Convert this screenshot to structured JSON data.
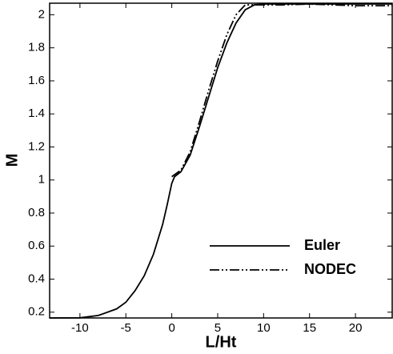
{
  "chart_data": {
    "type": "line",
    "x_label": "L/Ht",
    "y_label": "M",
    "xlim": [
      -13.3,
      24
    ],
    "ylim": [
      0.165,
      2.07
    ],
    "xticks": [
      -10,
      -5,
      0,
      5,
      10,
      15,
      20
    ],
    "yticks": [
      0.2,
      0.4,
      0.6,
      0.8,
      1,
      1.2,
      1.4,
      1.6,
      1.8,
      2
    ],
    "legend": "lower right",
    "series": [
      {
        "name": "Euler",
        "color": "#000000",
        "dash": "solid",
        "x": [
          -13.3,
          -10,
          -8,
          -6,
          -5,
          -4,
          -3,
          -2,
          -1,
          -0.5,
          0,
          0.3,
          1,
          2,
          3,
          4,
          5,
          6,
          7,
          8,
          9,
          10,
          15,
          24
        ],
        "values": [
          0.165,
          0.166,
          0.18,
          0.22,
          0.26,
          0.33,
          0.42,
          0.55,
          0.73,
          0.85,
          0.98,
          1.02,
          1.05,
          1.15,
          1.32,
          1.5,
          1.68,
          1.83,
          1.95,
          2.03,
          2.06,
          2.065,
          2.065,
          2.065
        ]
      },
      {
        "name": "NODEC",
        "color": "#000000",
        "dash": "dash-dot-dot",
        "x": [
          0,
          1,
          2,
          3,
          4,
          5,
          6,
          7,
          8,
          9,
          12,
          15,
          20,
          24
        ],
        "values": [
          1.02,
          1.06,
          1.17,
          1.35,
          1.54,
          1.72,
          1.88,
          2.0,
          2.06,
          2.06,
          2.06,
          2.065,
          2.055,
          2.055
        ]
      }
    ]
  }
}
